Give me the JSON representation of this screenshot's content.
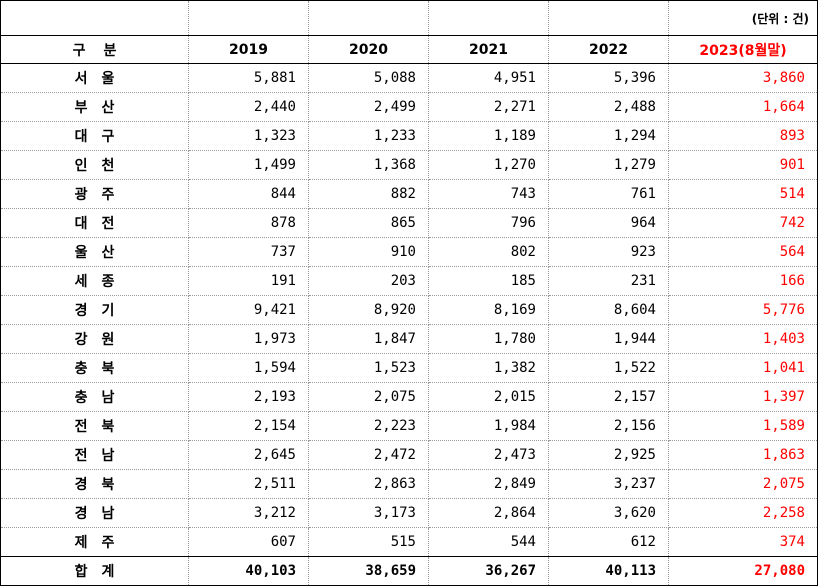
{
  "unit_label": "(단위 : 건)",
  "header": [
    "구분",
    "2019",
    "2020",
    "2021",
    "2022",
    "2023(8월말)"
  ],
  "rows": [
    {
      "region": "서울",
      "values": [
        "5,881",
        "5,088",
        "4,951",
        "5,396",
        "3,860"
      ]
    },
    {
      "region": "부산",
      "values": [
        "2,440",
        "2,499",
        "2,271",
        "2,488",
        "1,664"
      ]
    },
    {
      "region": "대구",
      "values": [
        "1,323",
        "1,233",
        "1,189",
        "1,294",
        "893"
      ]
    },
    {
      "region": "인천",
      "values": [
        "1,499",
        "1,368",
        "1,270",
        "1,279",
        "901"
      ]
    },
    {
      "region": "광주",
      "values": [
        "844",
        "882",
        "743",
        "761",
        "514"
      ]
    },
    {
      "region": "대전",
      "values": [
        "878",
        "865",
        "796",
        "964",
        "742"
      ]
    },
    {
      "region": "울산",
      "values": [
        "737",
        "910",
        "802",
        "923",
        "564"
      ]
    },
    {
      "region": "세종",
      "values": [
        "191",
        "203",
        "185",
        "231",
        "166"
      ]
    },
    {
      "region": "경기",
      "values": [
        "9,421",
        "8,920",
        "8,169",
        "8,604",
        "5,776"
      ]
    },
    {
      "region": "강원",
      "values": [
        "1,973",
        "1,847",
        "1,780",
        "1,944",
        "1,403"
      ]
    },
    {
      "region": "충북",
      "values": [
        "1,594",
        "1,523",
        "1,382",
        "1,522",
        "1,041"
      ]
    },
    {
      "region": "충남",
      "values": [
        "2,193",
        "2,075",
        "2,015",
        "2,157",
        "1,397"
      ]
    },
    {
      "region": "전북",
      "values": [
        "2,154",
        "2,223",
        "1,984",
        "2,156",
        "1,589"
      ]
    },
    {
      "region": "전남",
      "values": [
        "2,645",
        "2,472",
        "2,473",
        "2,925",
        "1,863"
      ]
    },
    {
      "region": "경북",
      "values": [
        "2,511",
        "2,863",
        "2,849",
        "3,237",
        "2,075"
      ]
    },
    {
      "region": "경남",
      "values": [
        "3,212",
        "3,173",
        "2,864",
        "3,620",
        "2,258"
      ]
    },
    {
      "region": "제주",
      "values": [
        "607",
        "515",
        "544",
        "612",
        "374"
      ]
    }
  ],
  "total": {
    "region": "합계",
    "values": [
      "40,103",
      "38,659",
      "36,267",
      "40,113",
      "27,080"
    ]
  },
  "colors": {
    "highlight": "#ff0000",
    "grid": "#9a9a9a"
  }
}
